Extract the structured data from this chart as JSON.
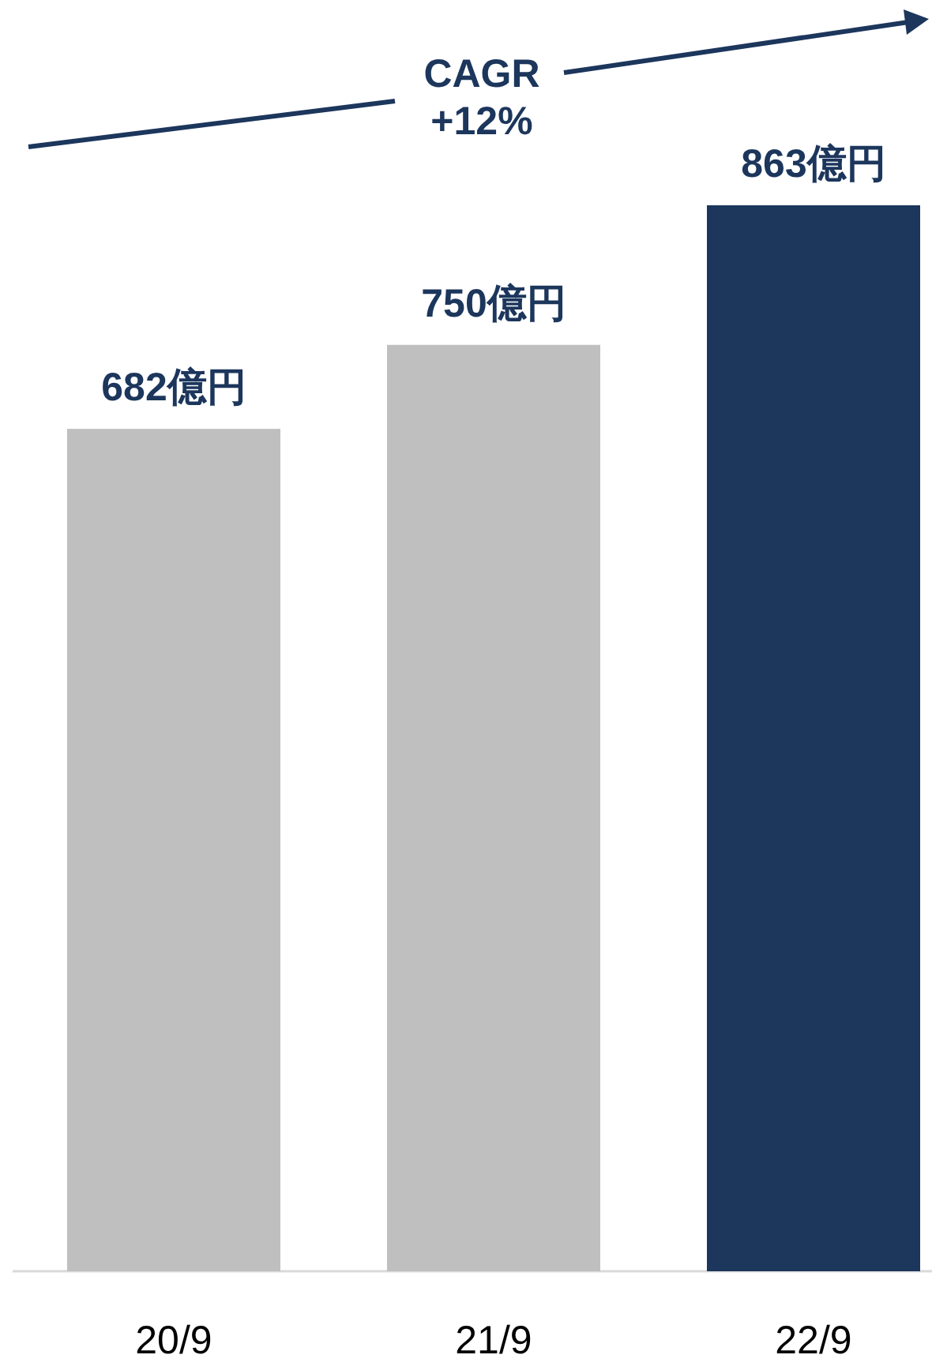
{
  "chart_data": {
    "type": "bar",
    "categories": [
      "20/9",
      "21/9",
      "22/9"
    ],
    "values": [
      682,
      750,
      863
    ],
    "colors": [
      "#bfbfbf",
      "#bfbfbf",
      "#1c365c"
    ],
    "value_labels": [
      "682億円",
      "750億円",
      "863億円"
    ],
    "annotations": [
      "CAGR +12%"
    ]
  }
}
